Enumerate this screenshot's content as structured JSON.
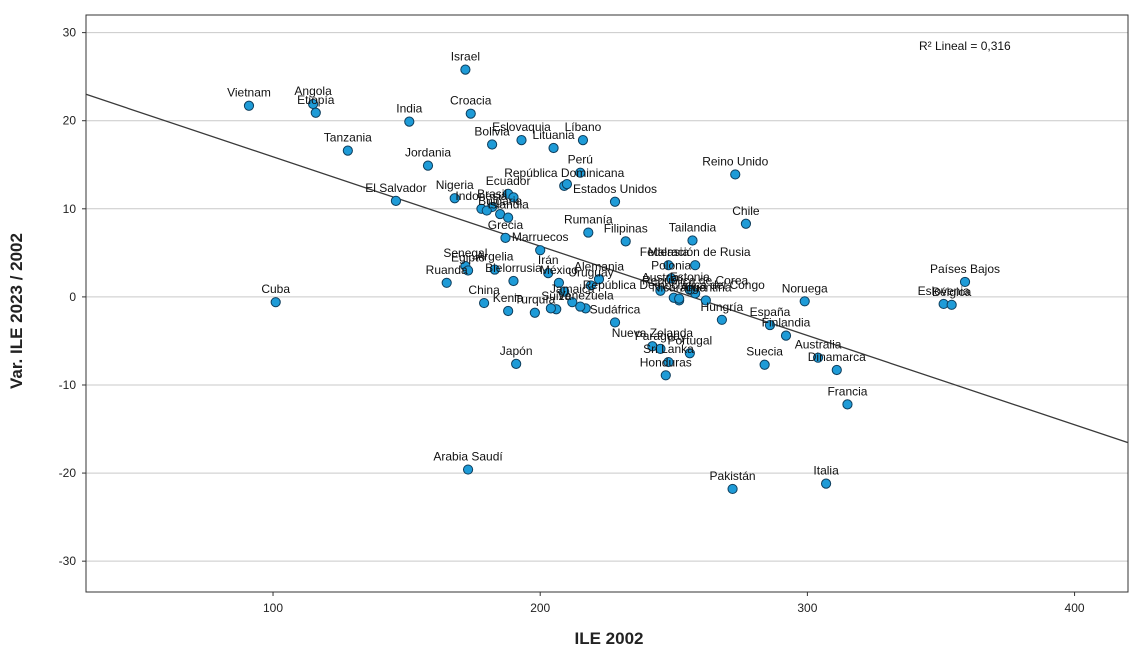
{
  "chart_data": {
    "type": "scatter",
    "title": "",
    "xlabel": "ILE 2002",
    "ylabel": "Var. ILE 2023 / 2002",
    "xlim": [
      30,
      420
    ],
    "ylim": [
      -33.5,
      32
    ],
    "xticks": [
      100,
      200,
      300,
      400
    ],
    "yticks": [
      30,
      20,
      10,
      0,
      -10,
      -20,
      -30
    ],
    "grid": "horizontal",
    "annotation": {
      "text": "R² Lineal = 0,316",
      "r2": 0.316
    },
    "fit_line": {
      "slope": -0.1014,
      "intercept": 26.04
    },
    "points": [
      {
        "label": "Vietnam",
        "x": 91,
        "y": 21.7
      },
      {
        "label": "Angola",
        "x": 115,
        "y": 21.9
      },
      {
        "label": "Etiopía",
        "x": 116,
        "y": 20.9
      },
      {
        "label": "Tanzania",
        "x": 128,
        "y": 16.6
      },
      {
        "label": "India",
        "x": 151,
        "y": 19.9
      },
      {
        "label": "Jordania",
        "x": 158,
        "y": 14.9
      },
      {
        "label": "Israel",
        "x": 172,
        "y": 25.8
      },
      {
        "label": "Croacia",
        "x": 174,
        "y": 20.8
      },
      {
        "label": "Bolivia",
        "x": 182,
        "y": 17.3
      },
      {
        "label": "Eslovaquia",
        "x": 193,
        "y": 17.8
      },
      {
        "label": "Lituania",
        "x": 205,
        "y": 16.9
      },
      {
        "label": "Líbano",
        "x": 216,
        "y": 17.8
      },
      {
        "label": "Perú",
        "x": 215,
        "y": 14.1
      },
      {
        "label": "Reino Unido",
        "x": 273,
        "y": 13.9
      },
      {
        "label": "El Salvador",
        "x": 146,
        "y": 10.9
      },
      {
        "label": "Nigeria",
        "x": 168,
        "y": 11.2
      },
      {
        "label": "Indonesia",
        "x": 178,
        "y": 10.0
      },
      {
        "label": "Brasil",
        "x": 182,
        "y": 10.2
      },
      {
        "label": "Ecuador",
        "x": 188,
        "y": 11.7
      },
      {
        "label": "Bulgaria",
        "x": 185,
        "y": 9.4
      },
      {
        "label": "Islandia",
        "x": 188,
        "y": 9.0
      },
      {
        "label": "República Dominicana",
        "x": 209,
        "y": 12.6
      },
      {
        "label": "Estados Unidos",
        "x": 228,
        "y": 10.8
      },
      {
        "label": "Chile",
        "x": 277,
        "y": 8.3
      },
      {
        "label": "Grecia",
        "x": 187,
        "y": 6.7
      },
      {
        "label": "Marruecos",
        "x": 200,
        "y": 5.3
      },
      {
        "label": "Rumanía",
        "x": 218,
        "y": 7.3
      },
      {
        "label": "Tailandia",
        "x": 257,
        "y": 6.4
      },
      {
        "label": "Filipinas",
        "x": 232,
        "y": 6.3
      },
      {
        "label": "Ruanda",
        "x": 165,
        "y": 1.6
      },
      {
        "label": "Senegal",
        "x": 172,
        "y": 3.5
      },
      {
        "label": "Egipto",
        "x": 173,
        "y": 3.0
      },
      {
        "label": "Argelia",
        "x": 183,
        "y": 3.1
      },
      {
        "label": "Irán",
        "x": 203,
        "y": 2.7
      },
      {
        "label": "Malasia",
        "x": 248,
        "y": 3.6
      },
      {
        "label": "Federación de Rusia",
        "x": 258,
        "y": 3.6
      },
      {
        "label": "Polonia",
        "x": 249,
        "y": 2.1
      },
      {
        "label": "República de Corea",
        "x": 258,
        "y": 0.4
      },
      {
        "label": "Países Bajos",
        "x": 359,
        "y": 1.7
      },
      {
        "label": "Bielorrusia",
        "x": 190,
        "y": 1.8
      },
      {
        "label": "México",
        "x": 207,
        "y": 1.6
      },
      {
        "label": "Alemania",
        "x": 222,
        "y": 2.0
      },
      {
        "label": "Estonia",
        "x": 256,
        "y": 0.8
      },
      {
        "label": "Cuba",
        "x": 101,
        "y": -0.6
      },
      {
        "label": "China",
        "x": 179,
        "y": -0.7
      },
      {
        "label": "Jamaica",
        "x": 212,
        "y": -0.6
      },
      {
        "label": "Uruguay",
        "x": 219,
        "y": 1.3
      },
      {
        "label": "Noruega",
        "x": 299,
        "y": -0.5
      },
      {
        "label": "Eslovenia",
        "x": 351,
        "y": -0.8
      },
      {
        "label": "Kenia",
        "x": 188,
        "y": -1.6
      },
      {
        "label": "Turquía",
        "x": 198,
        "y": -1.8
      },
      {
        "label": "Suiza",
        "x": 206,
        "y": -1.4
      },
      {
        "label": "Austria",
        "x": 245,
        "y": 0.7
      },
      {
        "label": "Argentina",
        "x": 262,
        "y": -0.4
      },
      {
        "label": "Hungría",
        "x": 268,
        "y": -2.6
      },
      {
        "label": "España",
        "x": 286,
        "y": -3.2
      },
      {
        "label": "Finlandia",
        "x": 292,
        "y": -4.4
      },
      {
        "label": "Bélgica",
        "x": 354,
        "y": -0.9
      },
      {
        "label": "Japón",
        "x": 191,
        "y": -7.6
      },
      {
        "label": "Venezuela",
        "x": 217,
        "y": -1.3
      },
      {
        "label": "Sudáfrica",
        "x": 228,
        "y": -2.9
      },
      {
        "label": "Nueva Zelanda",
        "x": 242,
        "y": -5.6
      },
      {
        "label": "Australia",
        "x": 304,
        "y": -6.9
      },
      {
        "label": "Suecia",
        "x": 284,
        "y": -7.7
      },
      {
        "label": "Paraguay",
        "x": 245,
        "y": -5.9
      },
      {
        "label": "Sri Lanka",
        "x": 248,
        "y": -7.4
      },
      {
        "label": "Portugal",
        "x": 256,
        "y": -6.4
      },
      {
        "label": "Honduras",
        "x": 247,
        "y": -8.9
      },
      {
        "label": "Nicaragua",
        "x": 252,
        "y": -0.4
      },
      {
        "label": "Dinamarca",
        "x": 311,
        "y": -8.3
      },
      {
        "label": "Francia",
        "x": 315,
        "y": -12.2
      },
      {
        "label": "República Democrática del Congo",
        "x": 250,
        "y": -0.1
      },
      {
        "label": "Arabia Saudí",
        "x": 173,
        "y": -19.6
      },
      {
        "label": "Pakistán",
        "x": 272,
        "y": -21.8
      },
      {
        "label": "Italia",
        "x": 307,
        "y": -21.2
      },
      {
        "label": "",
        "x": 210,
        "y": 12.8
      },
      {
        "label": "",
        "x": 190,
        "y": 11.3
      },
      {
        "label": "",
        "x": 180,
        "y": 9.8
      },
      {
        "label": "",
        "x": 209,
        "y": 0.6
      },
      {
        "label": "",
        "x": 204,
        "y": -1.3
      },
      {
        "label": "",
        "x": 215,
        "y": -1.1
      },
      {
        "label": "",
        "x": 252,
        "y": -0.2
      }
    ]
  }
}
